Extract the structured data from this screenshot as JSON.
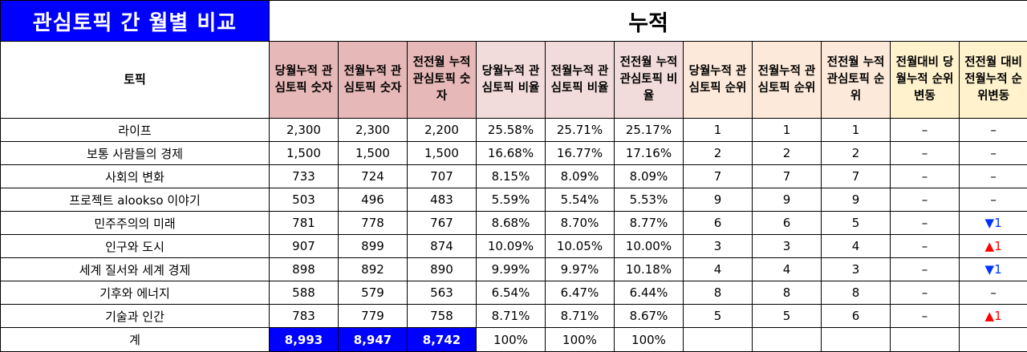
{
  "title": "관심토픽 간 월별 비교",
  "group_header": "누적",
  "columns": [
    "토픽",
    "당월누적 관심토픽 숫자",
    "전월누적 관심토픽 숫자",
    "전전월 누적 관심토픽 숫자",
    "당월누적 관심토픽 비율",
    "전월누적 관심토픽 비율",
    "전전월 누적 관심토픽 비율",
    "당월누적 관심토픽 순위",
    "전월누적 관심토픽 순위",
    "전전월 누적 관심토픽 순위",
    "전월대비 당월누적 순위변동",
    "전전월 대비 전월누적 순위변동"
  ],
  "rows": [
    [
      "라이프",
      "2,300",
      "2,300",
      "2,200",
      "25.58%",
      "25.71%",
      "25.17%",
      "1",
      "1",
      "1",
      "–",
      "–"
    ],
    [
      "보통 사람들의 경제",
      "1,500",
      "1,500",
      "1,500",
      "16.68%",
      "16.77%",
      "17.16%",
      "2",
      "2",
      "2",
      "–",
      "–"
    ],
    [
      "사회의 변화",
      "733",
      "724",
      "707",
      "8.15%",
      "8.09%",
      "8.09%",
      "7",
      "7",
      "7",
      "–",
      "–"
    ],
    [
      "프로젝트 alookso 이야기",
      "503",
      "496",
      "483",
      "5.59%",
      "5.54%",
      "5.53%",
      "9",
      "9",
      "9",
      "–",
      "–"
    ],
    [
      "민주주의의 미래",
      "781",
      "778",
      "767",
      "8.68%",
      "8.70%",
      "8.77%",
      "6",
      "6",
      "5",
      "–",
      "▼1"
    ],
    [
      "인구와 도시",
      "907",
      "899",
      "874",
      "10.09%",
      "10.05%",
      "10.00%",
      "3",
      "3",
      "4",
      "–",
      "▲1"
    ],
    [
      "세계 질서와 세계 경제",
      "898",
      "892",
      "890",
      "9.99%",
      "9.97%",
      "10.18%",
      "4",
      "4",
      "3",
      "–",
      "▼1"
    ],
    [
      "기후와 에너지",
      "588",
      "579",
      "563",
      "6.54%",
      "6.47%",
      "6.44%",
      "8",
      "8",
      "8",
      "–",
      "–"
    ],
    [
      "기술과 인간",
      "783",
      "779",
      "758",
      "8.71%",
      "8.71%",
      "8.67%",
      "5",
      "5",
      "6",
      "–",
      "▲1"
    ]
  ],
  "total": [
    "계",
    "8,993",
    "8,947",
    "8,742",
    "100%",
    "100%",
    "100%",
    "",
    "",
    "",
    "",
    ""
  ],
  "colors": {
    "title_bg": "#0000ff",
    "count_header_bg": "#e6b8b7",
    "ratio_header_bg": "#f2dcdb",
    "rank_header_bg": "#fde9d9",
    "change_header_bg": "#fff2cc",
    "down_arrow": "#0033ff",
    "up_arrow": "#ff0000"
  }
}
